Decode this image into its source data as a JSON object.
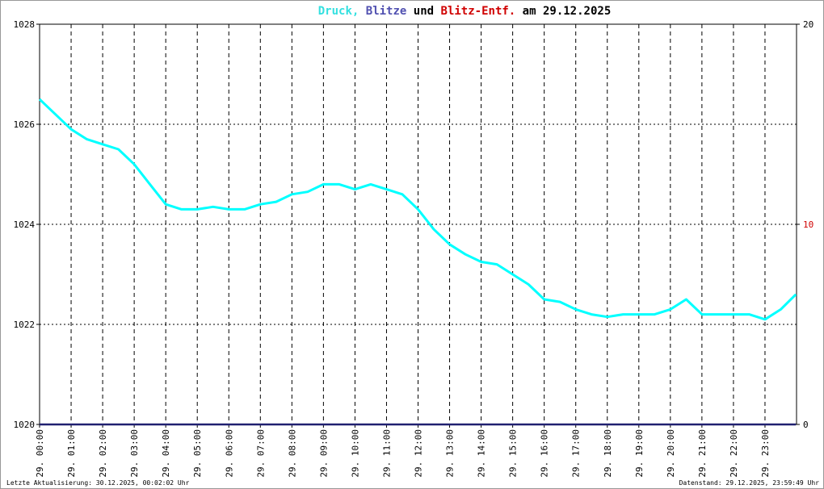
{
  "chart_data": {
    "type": "line",
    "title_parts": [
      {
        "text": "Druck,",
        "color": "#33e0e0"
      },
      {
        "text": "Blitze",
        "color": "#5050b0"
      },
      {
        "text": "und",
        "color": "#000000"
      },
      {
        "text": "Blitz-Entf.",
        "color": "#d00000"
      },
      {
        "text": "am 29.12.2025",
        "color": "#000000"
      }
    ],
    "x": [
      0,
      0.5,
      1,
      1.5,
      2,
      2.5,
      3,
      3.5,
      4,
      4.5,
      5,
      5.5,
      6,
      6.5,
      7,
      7.5,
      8,
      8.5,
      9,
      9.5,
      10,
      10.5,
      11,
      11.5,
      12,
      12.5,
      13,
      13.5,
      14,
      14.5,
      15,
      15.5,
      16,
      16.5,
      17,
      17.5,
      18,
      18.5,
      19,
      19.5,
      20,
      20.5,
      21,
      21.5,
      22,
      22.5,
      23,
      23.5,
      23.98
    ],
    "series": [
      {
        "name": "Druck",
        "color": "#00ffff",
        "values": [
          1026.5,
          1026.2,
          1025.9,
          1025.7,
          1025.6,
          1025.5,
          1025.2,
          1024.8,
          1024.4,
          1024.3,
          1024.3,
          1024.35,
          1024.3,
          1024.3,
          1024.4,
          1024.45,
          1024.6,
          1024.65,
          1024.8,
          1024.8,
          1024.7,
          1024.8,
          1024.7,
          1024.6,
          1024.3,
          1023.9,
          1023.6,
          1023.4,
          1023.25,
          1023.2,
          1023.0,
          1022.8,
          1022.5,
          1022.45,
          1022.3,
          1022.2,
          1022.15,
          1022.2,
          1022.2,
          1022.2,
          1022.3,
          1022.5,
          1022.2,
          1022.2,
          1022.2,
          1022.2,
          1022.1,
          1022.3,
          1022.6
        ]
      },
      {
        "name": "Blitze",
        "color": "#202070",
        "axis": "y2",
        "values": [
          0,
          0,
          0,
          0,
          0,
          0,
          0,
          0,
          0,
          0,
          0,
          0,
          0,
          0,
          0,
          0,
          0,
          0,
          0,
          0,
          0,
          0,
          0,
          0,
          0,
          0,
          0,
          0,
          0,
          0,
          0,
          0,
          0,
          0,
          0,
          0,
          0,
          0,
          0,
          0,
          0,
          0,
          0,
          0,
          0,
          0,
          0,
          0,
          0
        ]
      }
    ],
    "xlim": [
      0,
      24
    ],
    "xticks": [
      {
        "value": 0,
        "label": "29. 00:00"
      },
      {
        "value": 1,
        "label": "29. 01:00"
      },
      {
        "value": 2,
        "label": "29. 02:00"
      },
      {
        "value": 3,
        "label": "29. 03:00"
      },
      {
        "value": 4,
        "label": "29. 04:00"
      },
      {
        "value": 5,
        "label": "29. 05:00"
      },
      {
        "value": 6,
        "label": "29. 06:00"
      },
      {
        "value": 7,
        "label": "29. 07:00"
      },
      {
        "value": 8,
        "label": "29. 08:00"
      },
      {
        "value": 9,
        "label": "29. 09:00"
      },
      {
        "value": 10,
        "label": "29. 10:00"
      },
      {
        "value": 11,
        "label": "29. 11:00"
      },
      {
        "value": 12,
        "label": "29. 12:00"
      },
      {
        "value": 13,
        "label": "29. 13:00"
      },
      {
        "value": 14,
        "label": "29. 14:00"
      },
      {
        "value": 15,
        "label": "29. 15:00"
      },
      {
        "value": 16,
        "label": "29. 16:00"
      },
      {
        "value": 17,
        "label": "29. 17:00"
      },
      {
        "value": 18,
        "label": "29. 18:00"
      },
      {
        "value": 19,
        "label": "29. 19:00"
      },
      {
        "value": 20,
        "label": "29. 20:00"
      },
      {
        "value": 21,
        "label": "29. 21:00"
      },
      {
        "value": 22,
        "label": "29. 22:00"
      },
      {
        "value": 23,
        "label": "29. 23:00"
      }
    ],
    "ylim": [
      1020,
      1028
    ],
    "yticks": [
      1020,
      1022,
      1024,
      1026,
      1028
    ],
    "y2lim": [
      0,
      20
    ],
    "y2ticks": [
      0,
      10,
      20
    ],
    "y2tick_colors": [
      "#000000",
      "#d00000",
      "#000000"
    ],
    "grid": true,
    "footer_left": "Letzte Aktualisierung: 30.12.2025, 00:02:02 Uhr",
    "footer_right": "Datenstand: 29.12.2025, 23:59:49 Uhr"
  }
}
